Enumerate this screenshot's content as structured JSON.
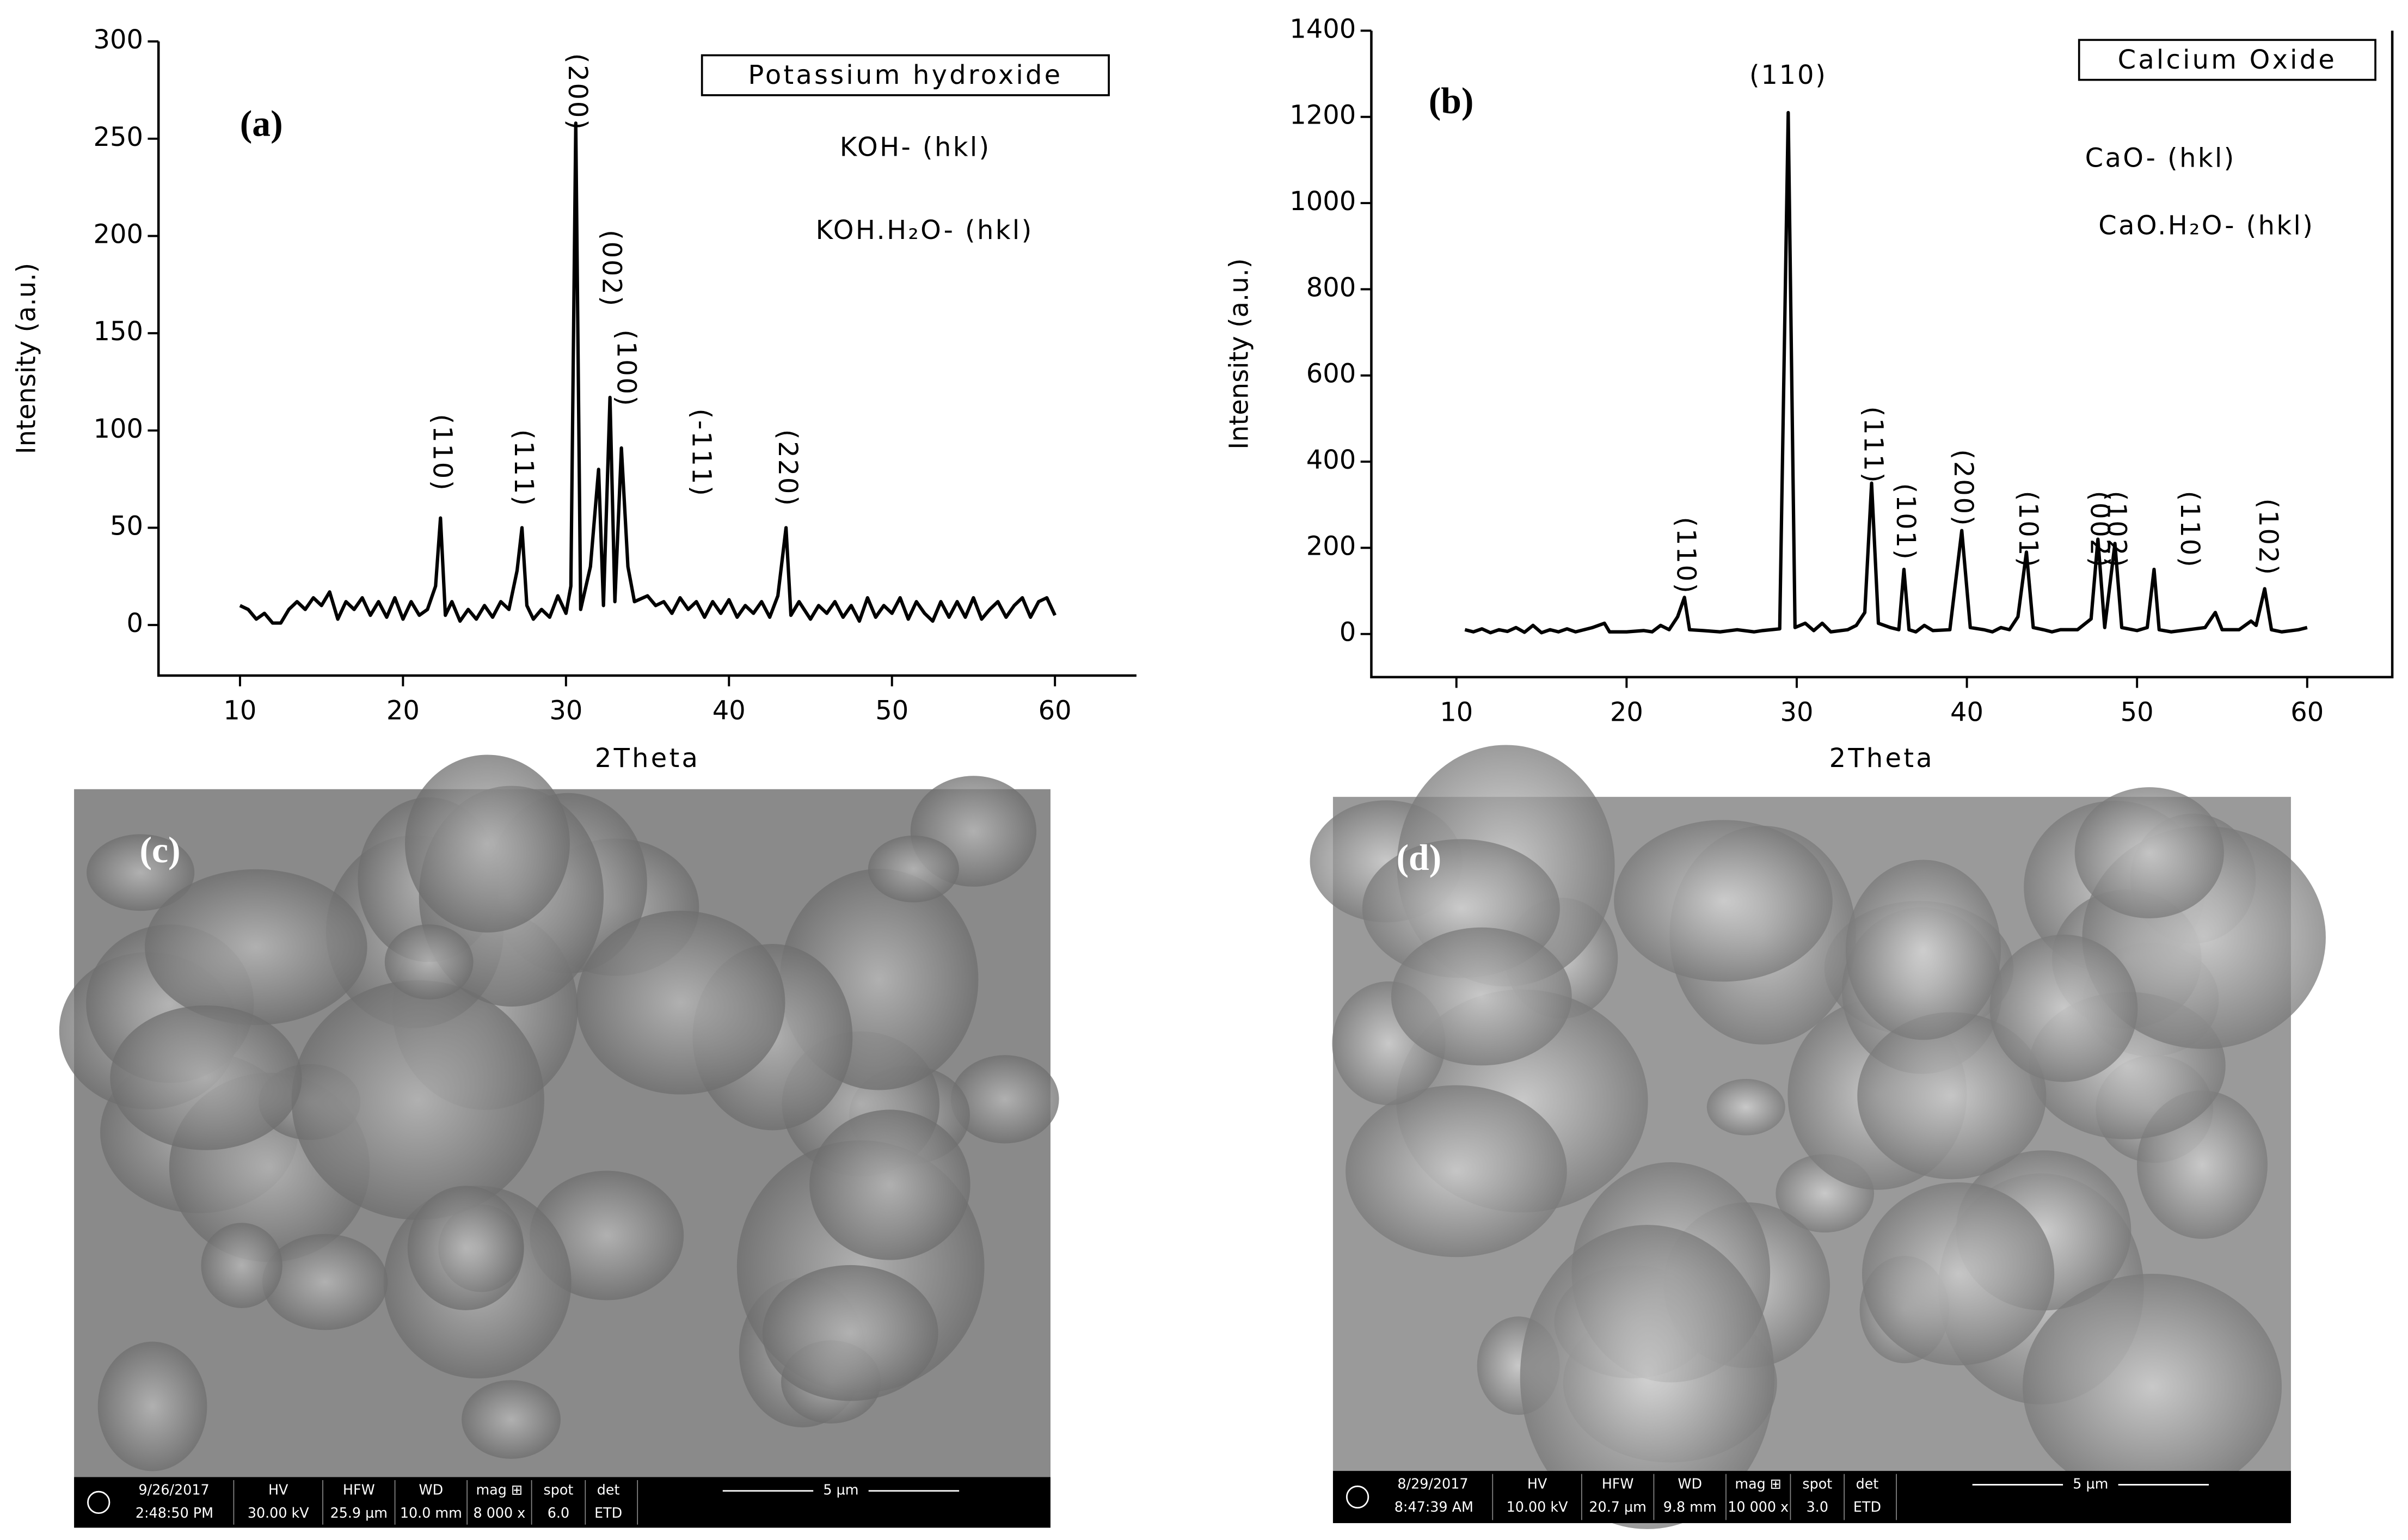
{
  "chart_data": [
    {
      "type": "line",
      "panel_label": "(a)",
      "title": "Potassium hydroxide",
      "legend_lines": [
        "KOH- (hkl)",
        "KOH.H₂O- (hkl)"
      ],
      "xlabel": "2Theta",
      "ylabel": "Intensity (a.u.)",
      "color": "#000000",
      "xlim": [
        5,
        65
      ],
      "ylim": [
        -26,
        300
      ],
      "xticks": [
        10,
        20,
        30,
        40,
        50,
        60
      ],
      "yticks": [
        0,
        50,
        100,
        150,
        200,
        250,
        300
      ],
      "x": [
        10,
        10.5,
        11,
        11.5,
        12,
        12.5,
        13,
        13.5,
        14,
        14.5,
        15,
        15.5,
        16,
        16.5,
        17,
        17.5,
        18,
        18.5,
        19,
        19.5,
        20,
        20.5,
        21,
        21.5,
        22,
        22.3,
        22.6,
        23,
        23.5,
        24,
        24.5,
        25,
        25.5,
        26,
        26.5,
        27,
        27.3,
        27.6,
        28,
        28.5,
        29,
        29.5,
        30,
        30.3,
        30.6,
        30.9,
        31.5,
        32,
        32.3,
        32.7,
        33,
        33.4,
        33.8,
        34.2,
        35,
        35.5,
        36,
        36.5,
        37,
        37.5,
        38,
        38.5,
        39,
        39.5,
        40,
        40.5,
        41,
        41.5,
        42,
        42.5,
        43,
        43.5,
        43.8,
        44.3,
        45,
        45.5,
        46,
        46.5,
        47,
        47.5,
        48,
        48.5,
        49,
        49.5,
        50,
        50.5,
        51,
        51.5,
        52,
        52.5,
        53,
        53.5,
        54,
        54.5,
        55,
        55.5,
        56,
        56.5,
        57,
        57.5,
        58,
        58.5,
        59,
        59.5,
        60
      ],
      "values": [
        10,
        8,
        3,
        6,
        1,
        1,
        8,
        12,
        8,
        14,
        10,
        17,
        3,
        12,
        8,
        14,
        5,
        12,
        4,
        14,
        3,
        12,
        5,
        8,
        20,
        55,
        5,
        12,
        2,
        8,
        3,
        10,
        4,
        12,
        8,
        28,
        50,
        10,
        3,
        8,
        4,
        15,
        6,
        20,
        258,
        8,
        30,
        80,
        10,
        117,
        12,
        91,
        30,
        12,
        15,
        10,
        12,
        6,
        14,
        8,
        12,
        4,
        12,
        6,
        13,
        4,
        10,
        6,
        12,
        4,
        15,
        50,
        5,
        12,
        3,
        10,
        6,
        12,
        4,
        10,
        2,
        14,
        4,
        10,
        6,
        14,
        3,
        12,
        6,
        2,
        12,
        4,
        12,
        4,
        14,
        3,
        8,
        12,
        4,
        10,
        14,
        4,
        12,
        14,
        5
      ],
      "annotations": [
        {
          "text": "(110)",
          "x": 22.3
        },
        {
          "text": "(111)",
          "x": 27.3
        },
        {
          "text": "(200)",
          "x": 30.6
        },
        {
          "text": "(002)",
          "x": 32.7
        },
        {
          "text": "(100)",
          "x": 33.6
        },
        {
          "text": "(-111)",
          "x": 38.2
        },
        {
          "text": "(220)",
          "x": 43.5
        }
      ]
    },
    {
      "type": "line",
      "panel_label": "(b)",
      "title": "Calcium Oxide",
      "legend_lines": [
        "CaO- (hkl)",
        "CaO.H₂O- (hkl)"
      ],
      "xlabel": "2Theta",
      "ylabel": "Intensity (a.u.)",
      "color": "#000000",
      "xlim": [
        5,
        65
      ],
      "ylim": [
        -100,
        1400
      ],
      "xticks": [
        10,
        20,
        30,
        40,
        50,
        60
      ],
      "yticks": [
        0,
        200,
        400,
        600,
        800,
        1000,
        1200,
        1400
      ],
      "x": [
        10.5,
        11,
        11.5,
        12,
        12.5,
        13,
        13.5,
        14,
        14.5,
        15,
        15.5,
        16,
        16.5,
        17,
        18,
        18.7,
        19,
        20,
        21,
        21.5,
        22,
        22.5,
        23,
        23.4,
        23.7,
        24.5,
        25.5,
        26.5,
        27.5,
        28,
        29,
        29.5,
        29.9,
        30.5,
        31,
        31.5,
        32,
        33,
        33.5,
        34,
        34.4,
        34.8,
        35.5,
        36,
        36.3,
        36.6,
        37,
        37.5,
        38,
        39,
        39.7,
        40.2,
        41,
        41.5,
        42,
        42.5,
        43,
        43.5,
        43.9,
        44.5,
        45,
        45.5,
        46.5,
        47.3,
        47.7,
        48.1,
        48.7,
        49.1,
        50,
        50.6,
        51,
        51.3,
        52,
        53,
        54,
        54.6,
        55,
        56,
        56.7,
        57,
        57.5,
        57.9,
        58.5,
        59.5,
        60
      ],
      "values": [
        10,
        5,
        12,
        3,
        10,
        6,
        15,
        4,
        20,
        3,
        10,
        5,
        12,
        5,
        15,
        25,
        5,
        5,
        8,
        5,
        20,
        10,
        40,
        85,
        10,
        8,
        5,
        10,
        5,
        8,
        12,
        1210,
        15,
        25,
        8,
        25,
        5,
        10,
        20,
        50,
        350,
        25,
        15,
        10,
        150,
        10,
        5,
        20,
        8,
        10,
        240,
        15,
        10,
        5,
        15,
        10,
        40,
        190,
        15,
        10,
        5,
        10,
        10,
        35,
        220,
        15,
        210,
        15,
        8,
        15,
        150,
        10,
        5,
        10,
        15,
        50,
        10,
        10,
        30,
        20,
        105,
        10,
        5,
        10,
        15
      ],
      "annotations": [
        {
          "text": "(110)",
          "x": 23.4
        },
        {
          "text": "(110)",
          "x": 29.5
        },
        {
          "text": "(111)",
          "x": 34.4
        },
        {
          "text": "(101)",
          "x": 36.3
        },
        {
          "text": "(200)",
          "x": 39.7
        },
        {
          "text": "(101)",
          "x": 43.5
        },
        {
          "text": "(002)",
          "x": 47.7
        },
        {
          "text": "(102)",
          "x": 48.7
        },
        {
          "text": "(110)",
          "x": 53.0
        },
        {
          "text": "(102)",
          "x": 57.6
        }
      ]
    }
  ],
  "sem_panels": [
    {
      "label": "(c)",
      "date": "9/26/2017",
      "time": "2:48:50 PM",
      "fields": [
        {
          "name": "HV",
          "value": "30.00 kV"
        },
        {
          "name": "HFW",
          "value": "25.9 µm"
        },
        {
          "name": "WD",
          "value": "10.0 mm"
        },
        {
          "name": "mag ⊞",
          "value": "8 000 x"
        },
        {
          "name": "spot",
          "value": "6.0"
        },
        {
          "name": "det",
          "value": "ETD"
        }
      ],
      "scale": "5 µm"
    },
    {
      "label": "(d)",
      "date": "8/29/2017",
      "time": "8:47:39 AM",
      "fields": [
        {
          "name": "HV",
          "value": "10.00 kV"
        },
        {
          "name": "HFW",
          "value": "20.7 µm"
        },
        {
          "name": "WD",
          "value": "9.8 mm"
        },
        {
          "name": "mag ⊞",
          "value": "10 000 x"
        },
        {
          "name": "spot",
          "value": "3.0"
        },
        {
          "name": "det",
          "value": "ETD"
        }
      ],
      "scale": "5 µm"
    }
  ]
}
